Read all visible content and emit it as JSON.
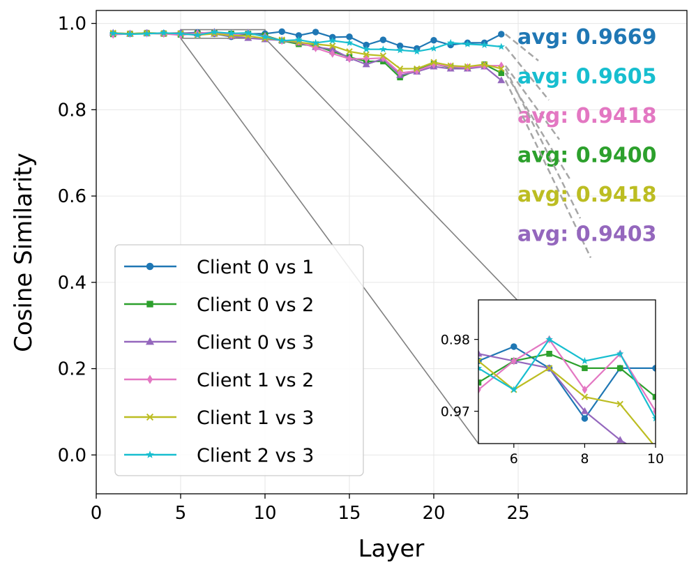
{
  "chart_data": {
    "type": "line",
    "title": "",
    "xlabel": "Layer",
    "ylabel": "Cosine Similarity",
    "xlim": [
      0,
      35
    ],
    "ylim": [
      -0.09,
      1.03
    ],
    "xticks": [
      0,
      5,
      10,
      15,
      20,
      25
    ],
    "yticks": [
      0.0,
      0.2,
      0.4,
      0.6,
      0.8,
      1.0
    ],
    "xtick_labels": [
      "0",
      "5",
      "10",
      "15",
      "20",
      "25"
    ],
    "ytick_labels": [
      "0.0",
      "0.2",
      "0.4",
      "0.6",
      "0.8",
      "1.0"
    ],
    "grid": true,
    "legend_position": "lower-left",
    "x": [
      1,
      2,
      3,
      4,
      5,
      6,
      7,
      8,
      9,
      10,
      11,
      12,
      13,
      14,
      15,
      16,
      17,
      18,
      19,
      20,
      21,
      22,
      23,
      24
    ],
    "series": [
      {
        "name": "Client 0 vs 1",
        "color": "#1f77b4",
        "marker": "circle",
        "values": [
          0.976,
          0.976,
          0.978,
          0.977,
          0.977,
          0.979,
          0.976,
          0.969,
          0.976,
          0.976,
          0.981,
          0.972,
          0.98,
          0.968,
          0.969,
          0.95,
          0.962,
          0.948,
          0.942,
          0.961,
          0.95,
          0.955,
          0.955,
          0.975
        ]
      },
      {
        "name": "Client 0 vs 2",
        "color": "#2ca02c",
        "marker": "square",
        "values": [
          0.975,
          0.976,
          0.977,
          0.976,
          0.974,
          0.977,
          0.978,
          0.976,
          0.976,
          0.972,
          0.96,
          0.952,
          0.948,
          0.935,
          0.922,
          0.912,
          0.912,
          0.875,
          0.892,
          0.906,
          0.898,
          0.896,
          0.905,
          0.885
        ]
      },
      {
        "name": "Client 0 vs 3",
        "color": "#9467bd",
        "marker": "triangle",
        "values": [
          0.978,
          0.976,
          0.977,
          0.977,
          0.978,
          0.977,
          0.976,
          0.97,
          0.966,
          0.963,
          0.961,
          0.955,
          0.945,
          0.94,
          0.92,
          0.905,
          0.918,
          0.88,
          0.888,
          0.9,
          0.895,
          0.895,
          0.9,
          0.868
        ]
      },
      {
        "name": "Client 1 vs 2",
        "color": "#e377c2",
        "marker": "diamond",
        "values": [
          0.974,
          0.976,
          0.977,
          0.976,
          0.973,
          0.977,
          0.98,
          0.973,
          0.978,
          0.97,
          0.96,
          0.958,
          0.943,
          0.93,
          0.918,
          0.918,
          0.92,
          0.885,
          0.89,
          0.905,
          0.9,
          0.898,
          0.902,
          0.902
        ]
      },
      {
        "name": "Client 1 vs 3",
        "color": "#bcbd22",
        "marker": "x",
        "values": [
          0.978,
          0.976,
          0.978,
          0.977,
          0.977,
          0.973,
          0.976,
          0.972,
          0.971,
          0.965,
          0.962,
          0.956,
          0.952,
          0.948,
          0.935,
          0.928,
          0.925,
          0.895,
          0.895,
          0.91,
          0.902,
          0.9,
          0.905,
          0.895
        ]
      },
      {
        "name": "Client 2 vs 3",
        "color": "#17becf",
        "marker": "star",
        "values": [
          0.977,
          0.975,
          0.976,
          0.978,
          0.976,
          0.973,
          0.98,
          0.977,
          0.978,
          0.969,
          0.96,
          0.962,
          0.955,
          0.96,
          0.955,
          0.94,
          0.94,
          0.938,
          0.935,
          0.942,
          0.955,
          0.952,
          0.95,
          0.946
        ]
      }
    ],
    "annotations": [
      {
        "text": "avg: 0.9669",
        "series": "Client 0 vs 1",
        "color": "#1f77b4"
      },
      {
        "text": "avg: 0.9605",
        "series": "Client 2 vs 3",
        "color": "#17becf"
      },
      {
        "text": "avg: 0.9418",
        "series": "Client 1 vs 2",
        "color": "#e377c2"
      },
      {
        "text": "avg: 0.9400",
        "series": "Client 0 vs 2",
        "color": "#2ca02c"
      },
      {
        "text": "avg: 0.9418",
        "series": "Client 1 vs 3",
        "color": "#bcbd22"
      },
      {
        "text": "avg: 0.9403",
        "series": "Client 0 vs 3",
        "color": "#9467bd"
      }
    ],
    "inset": {
      "xlim": [
        5,
        10
      ],
      "ylim": [
        0.9655,
        0.9855
      ],
      "xticks": [
        6,
        8,
        10
      ],
      "yticks": [
        0.97,
        0.98
      ],
      "xtick_labels": [
        "6",
        "8",
        "10"
      ],
      "ytick_labels": [
        "0.97",
        "0.98"
      ]
    }
  }
}
